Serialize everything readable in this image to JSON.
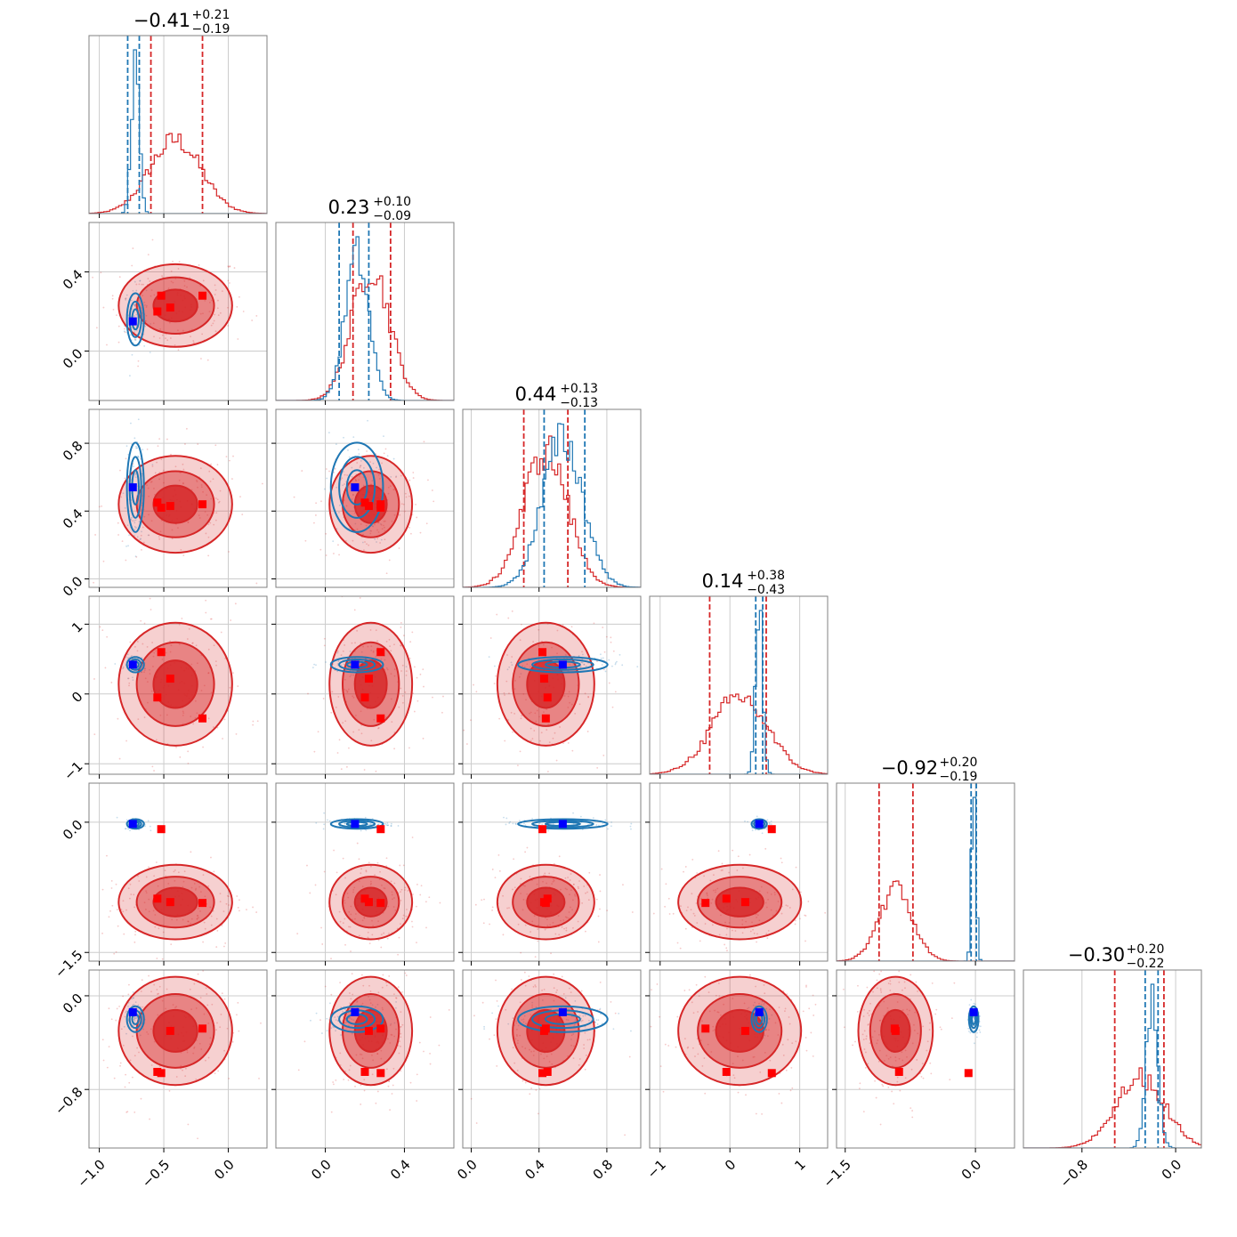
{
  "chart_data": {
    "type": "scatter",
    "subtype": "corner-plot",
    "grid": true,
    "params": [
      {
        "range": [
          -1.08,
          0.3
        ],
        "ticks": [
          -1.0,
          -0.5,
          0.0
        ],
        "tick_labels": [
          "−1.0",
          "−0.5",
          "0.0"
        ],
        "bins": 24
      },
      {
        "range": [
          -0.25,
          0.65
        ],
        "ticks": [
          0.0,
          0.4
        ],
        "tick_labels": [
          "0.0",
          "0.4"
        ],
        "bins": 24
      },
      {
        "range": [
          -0.05,
          1.0
        ],
        "ticks": [
          0.0,
          0.4,
          0.8
        ],
        "tick_labels": [
          "0.0",
          "0.4",
          "0.8"
        ],
        "bins": 24
      },
      {
        "range": [
          -1.15,
          1.4
        ],
        "ticks": [
          -1,
          0,
          1
        ],
        "tick_labels": [
          "−1",
          "0",
          "1"
        ],
        "bins": 24
      },
      {
        "range": [
          -1.6,
          0.45
        ],
        "ticks": [
          -1.5,
          0.0
        ],
        "tick_labels": [
          "−1.5",
          "0.0"
        ],
        "bins": 24
      },
      {
        "range": [
          -1.3,
          0.22
        ],
        "ticks": [
          -0.8,
          0.0
        ],
        "tick_labels": [
          "−0.8",
          "0.0"
        ],
        "bins": 24
      }
    ],
    "titles": [
      {
        "value": "−0.41",
        "plus": "+0.21",
        "minus": "−0.19"
      },
      {
        "value": "0.23",
        "plus": "+0.10",
        "minus": "−0.09"
      },
      {
        "value": "0.44",
        "plus": "+0.13",
        "minus": "−0.13"
      },
      {
        "value": "0.14",
        "plus": "+0.38",
        "minus": "−0.43"
      },
      {
        "value": "−0.92",
        "plus": "+0.20",
        "minus": "−0.19"
      },
      {
        "value": "−0.30",
        "plus": "+0.20",
        "minus": "−0.22"
      }
    ],
    "series": [
      {
        "color": "#d62728",
        "mean": [
          -0.41,
          0.23,
          0.44,
          0.14,
          -0.92,
          -0.3
        ],
        "sd": [
          0.2,
          0.095,
          0.13,
          0.4,
          0.195,
          0.21
        ],
        "quantiles": [
          [
            -0.6,
            -0.2
          ],
          [
            0.14,
            0.33
          ],
          [
            0.31,
            0.57
          ],
          [
            -0.29,
            0.52
          ],
          [
            -1.11,
            -0.72
          ],
          [
            -0.52,
            -0.1
          ]
        ],
        "markers": [
          [
            -0.45,
            0.22,
            0.43,
            0.22,
            -0.92,
            -0.3
          ],
          [
            -0.55,
            0.2,
            0.45,
            -0.05,
            -0.88,
            -0.65
          ],
          [
            -0.2,
            0.28,
            0.44,
            -0.35,
            -0.93,
            -0.28
          ],
          [
            -0.52,
            0.28,
            0.42,
            0.6,
            -0.08,
            -0.66
          ]
        ]
      },
      {
        "color": "#1f77b4",
        "mean": [
          -0.72,
          0.16,
          0.54,
          0.42,
          -0.02,
          -0.2
        ],
        "sd": [
          0.03,
          0.06,
          0.12,
          0.05,
          0.025,
          0.05
        ],
        "quantiles": [
          [
            -0.78,
            -0.69
          ],
          [
            0.07,
            0.22
          ],
          [
            0.43,
            0.67
          ],
          [
            0.37,
            0.47
          ],
          [
            -0.05,
            0.01
          ],
          [
            -0.26,
            -0.15
          ]
        ]
      }
    ],
    "truth_markers": [
      -0.74,
      0.15,
      0.54,
      0.42,
      -0.02,
      -0.14
    ]
  }
}
